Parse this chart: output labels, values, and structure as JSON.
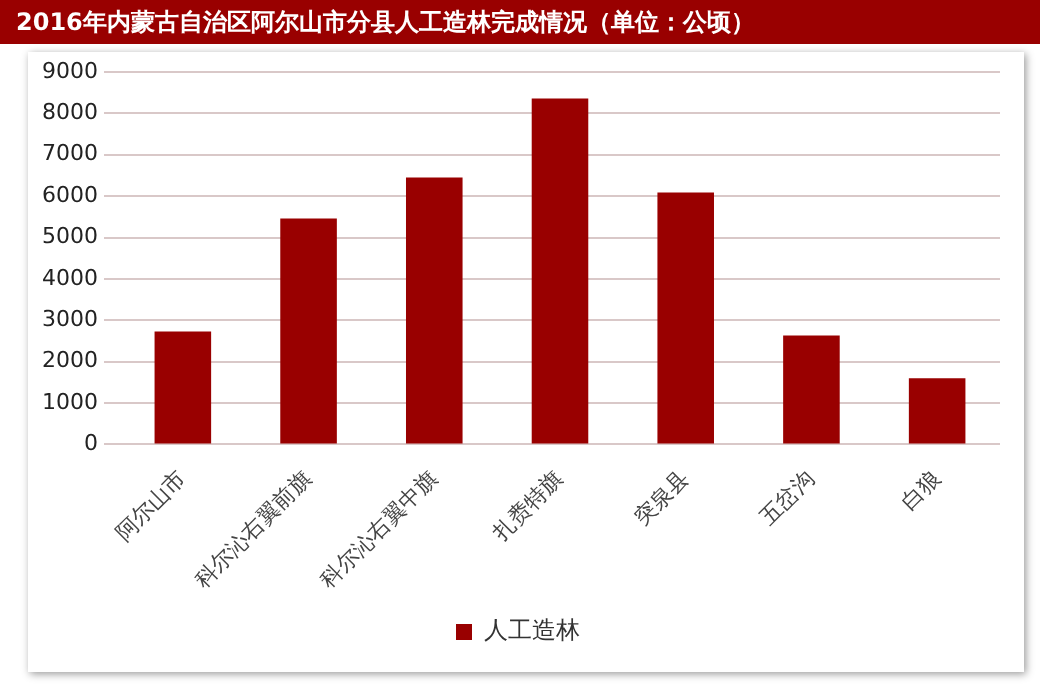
{
  "chart_data": {
    "type": "bar",
    "title": "2016年内蒙古自治区阿尔山市分县人工造林完成情况（单位：公顷）",
    "categories": [
      "阿尔山市",
      "科尔沁右翼前旗",
      "科尔沁右翼中旗",
      "扎赉特旗",
      "突泉县",
      "五岔沟",
      "白狼"
    ],
    "series": [
      {
        "name": "人工造林",
        "color": "#990000",
        "values": [
          2730,
          5460,
          6450,
          8360,
          6090,
          2630,
          1600
        ]
      }
    ],
    "ylim": [
      0,
      9000
    ],
    "yticks": [
      0,
      1000,
      2000,
      3000,
      4000,
      5000,
      6000,
      7000,
      8000,
      9000
    ],
    "grid": "y",
    "legend": "bottom"
  }
}
